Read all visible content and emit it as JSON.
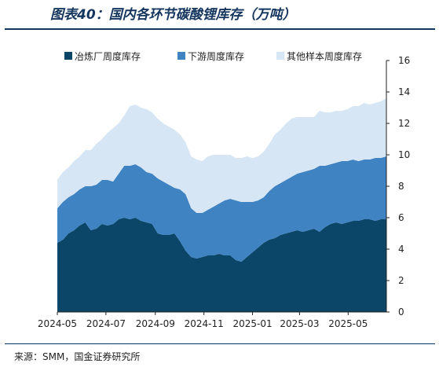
{
  "header": {
    "title": "图表40：国内各环节碳酸锂库存（万吨）"
  },
  "footer": {
    "source": "来源：SMM，国金证券研究所"
  },
  "colors": {
    "smelter": "#0b4668",
    "downstream": "#3f83c2",
    "others": "#d7e6f5",
    "title": "#14365e"
  },
  "chart_data": {
    "type": "area",
    "stacked": true,
    "title": "图表40：国内各环节碳酸锂库存（万吨）",
    "unit": "万吨",
    "ylim": [
      0,
      16
    ],
    "yticks": [
      0,
      2,
      4,
      6,
      8,
      10,
      12,
      14,
      16
    ],
    "y_axis_position": "right",
    "grid": false,
    "legend_position": "top",
    "xticklabels": [
      "2024-05",
      "2024-07",
      "2024-09",
      "2024-11",
      "2025-01",
      "2025-03",
      "2025-05"
    ],
    "x": [
      "2024-05-01",
      "2024-05-08",
      "2024-05-15",
      "2024-05-22",
      "2024-05-29",
      "2024-06-05",
      "2024-06-12",
      "2024-06-19",
      "2024-06-26",
      "2024-07-03",
      "2024-07-10",
      "2024-07-17",
      "2024-07-24",
      "2024-07-31",
      "2024-08-07",
      "2024-08-14",
      "2024-08-21",
      "2024-08-28",
      "2024-09-04",
      "2024-09-11",
      "2024-09-18",
      "2024-09-25",
      "2024-10-02",
      "2024-10-09",
      "2024-10-16",
      "2024-10-23",
      "2024-10-30",
      "2024-11-06",
      "2024-11-13",
      "2024-11-20",
      "2024-11-27",
      "2024-12-04",
      "2024-12-11",
      "2024-12-18",
      "2024-12-25",
      "2025-01-01",
      "2025-01-08",
      "2025-01-15",
      "2025-01-22",
      "2025-01-29",
      "2025-02-05",
      "2025-02-12",
      "2025-02-19",
      "2025-02-26",
      "2025-03-05",
      "2025-03-12",
      "2025-03-19",
      "2025-03-26",
      "2025-04-02",
      "2025-04-09",
      "2025-04-16",
      "2025-04-23",
      "2025-04-30",
      "2025-05-07",
      "2025-05-14",
      "2025-05-21",
      "2025-05-28",
      "2025-06-04",
      "2025-06-11",
      "2025-06-18"
    ],
    "series": [
      {
        "name": "冶炼厂周度库存",
        "color": "#0b4668",
        "values": [
          4.4,
          4.6,
          5.0,
          5.2,
          5.5,
          5.7,
          5.2,
          5.3,
          5.6,
          5.5,
          5.6,
          5.9,
          6.0,
          5.9,
          6.0,
          5.8,
          5.7,
          5.6,
          5.0,
          4.9,
          4.9,
          5.0,
          4.5,
          3.9,
          3.5,
          3.4,
          3.5,
          3.6,
          3.6,
          3.7,
          3.6,
          3.6,
          3.3,
          3.2,
          3.5,
          3.8,
          4.1,
          4.4,
          4.6,
          4.7,
          4.9,
          5.0,
          5.1,
          5.2,
          5.1,
          5.2,
          5.3,
          5.1,
          5.4,
          5.6,
          5.7,
          5.6,
          5.7,
          5.8,
          5.8,
          5.9,
          5.9,
          5.8,
          5.9,
          5.9
        ]
      },
      {
        "name": "下游周度库存",
        "color": "#3f83c2",
        "values": [
          2.2,
          2.4,
          2.3,
          2.3,
          2.3,
          2.3,
          2.8,
          2.8,
          2.8,
          2.9,
          2.7,
          2.9,
          3.3,
          3.4,
          3.4,
          3.4,
          3.2,
          3.2,
          3.5,
          3.4,
          3.2,
          2.9,
          3.3,
          3.6,
          3.1,
          2.9,
          2.8,
          2.9,
          3.1,
          3.2,
          3.5,
          3.6,
          3.8,
          3.8,
          3.5,
          3.2,
          3.0,
          2.9,
          3.1,
          3.3,
          3.3,
          3.4,
          3.5,
          3.6,
          3.8,
          3.8,
          3.8,
          4.2,
          3.9,
          3.8,
          3.8,
          4.0,
          3.9,
          3.9,
          3.8,
          3.8,
          3.8,
          4.0,
          3.9,
          4.0
        ]
      },
      {
        "name": "其他样本周度库存",
        "color": "#d7e6f5",
        "values": [
          1.8,
          1.9,
          1.9,
          2.1,
          2.1,
          2.3,
          2.3,
          2.6,
          2.6,
          3.0,
          3.4,
          3.2,
          3.2,
          3.8,
          3.8,
          3.8,
          4.0,
          3.9,
          3.8,
          3.7,
          3.7,
          3.7,
          3.5,
          3.3,
          3.3,
          3.4,
          3.3,
          3.4,
          3.3,
          3.1,
          2.9,
          2.8,
          2.7,
          2.8,
          2.9,
          2.8,
          2.8,
          2.9,
          3.0,
          3.3,
          3.4,
          3.6,
          3.7,
          3.6,
          3.5,
          3.4,
          3.3,
          3.5,
          3.4,
          3.3,
          3.3,
          3.2,
          3.3,
          3.4,
          3.5,
          3.6,
          3.5,
          3.5,
          3.6,
          3.7
        ]
      }
    ]
  }
}
